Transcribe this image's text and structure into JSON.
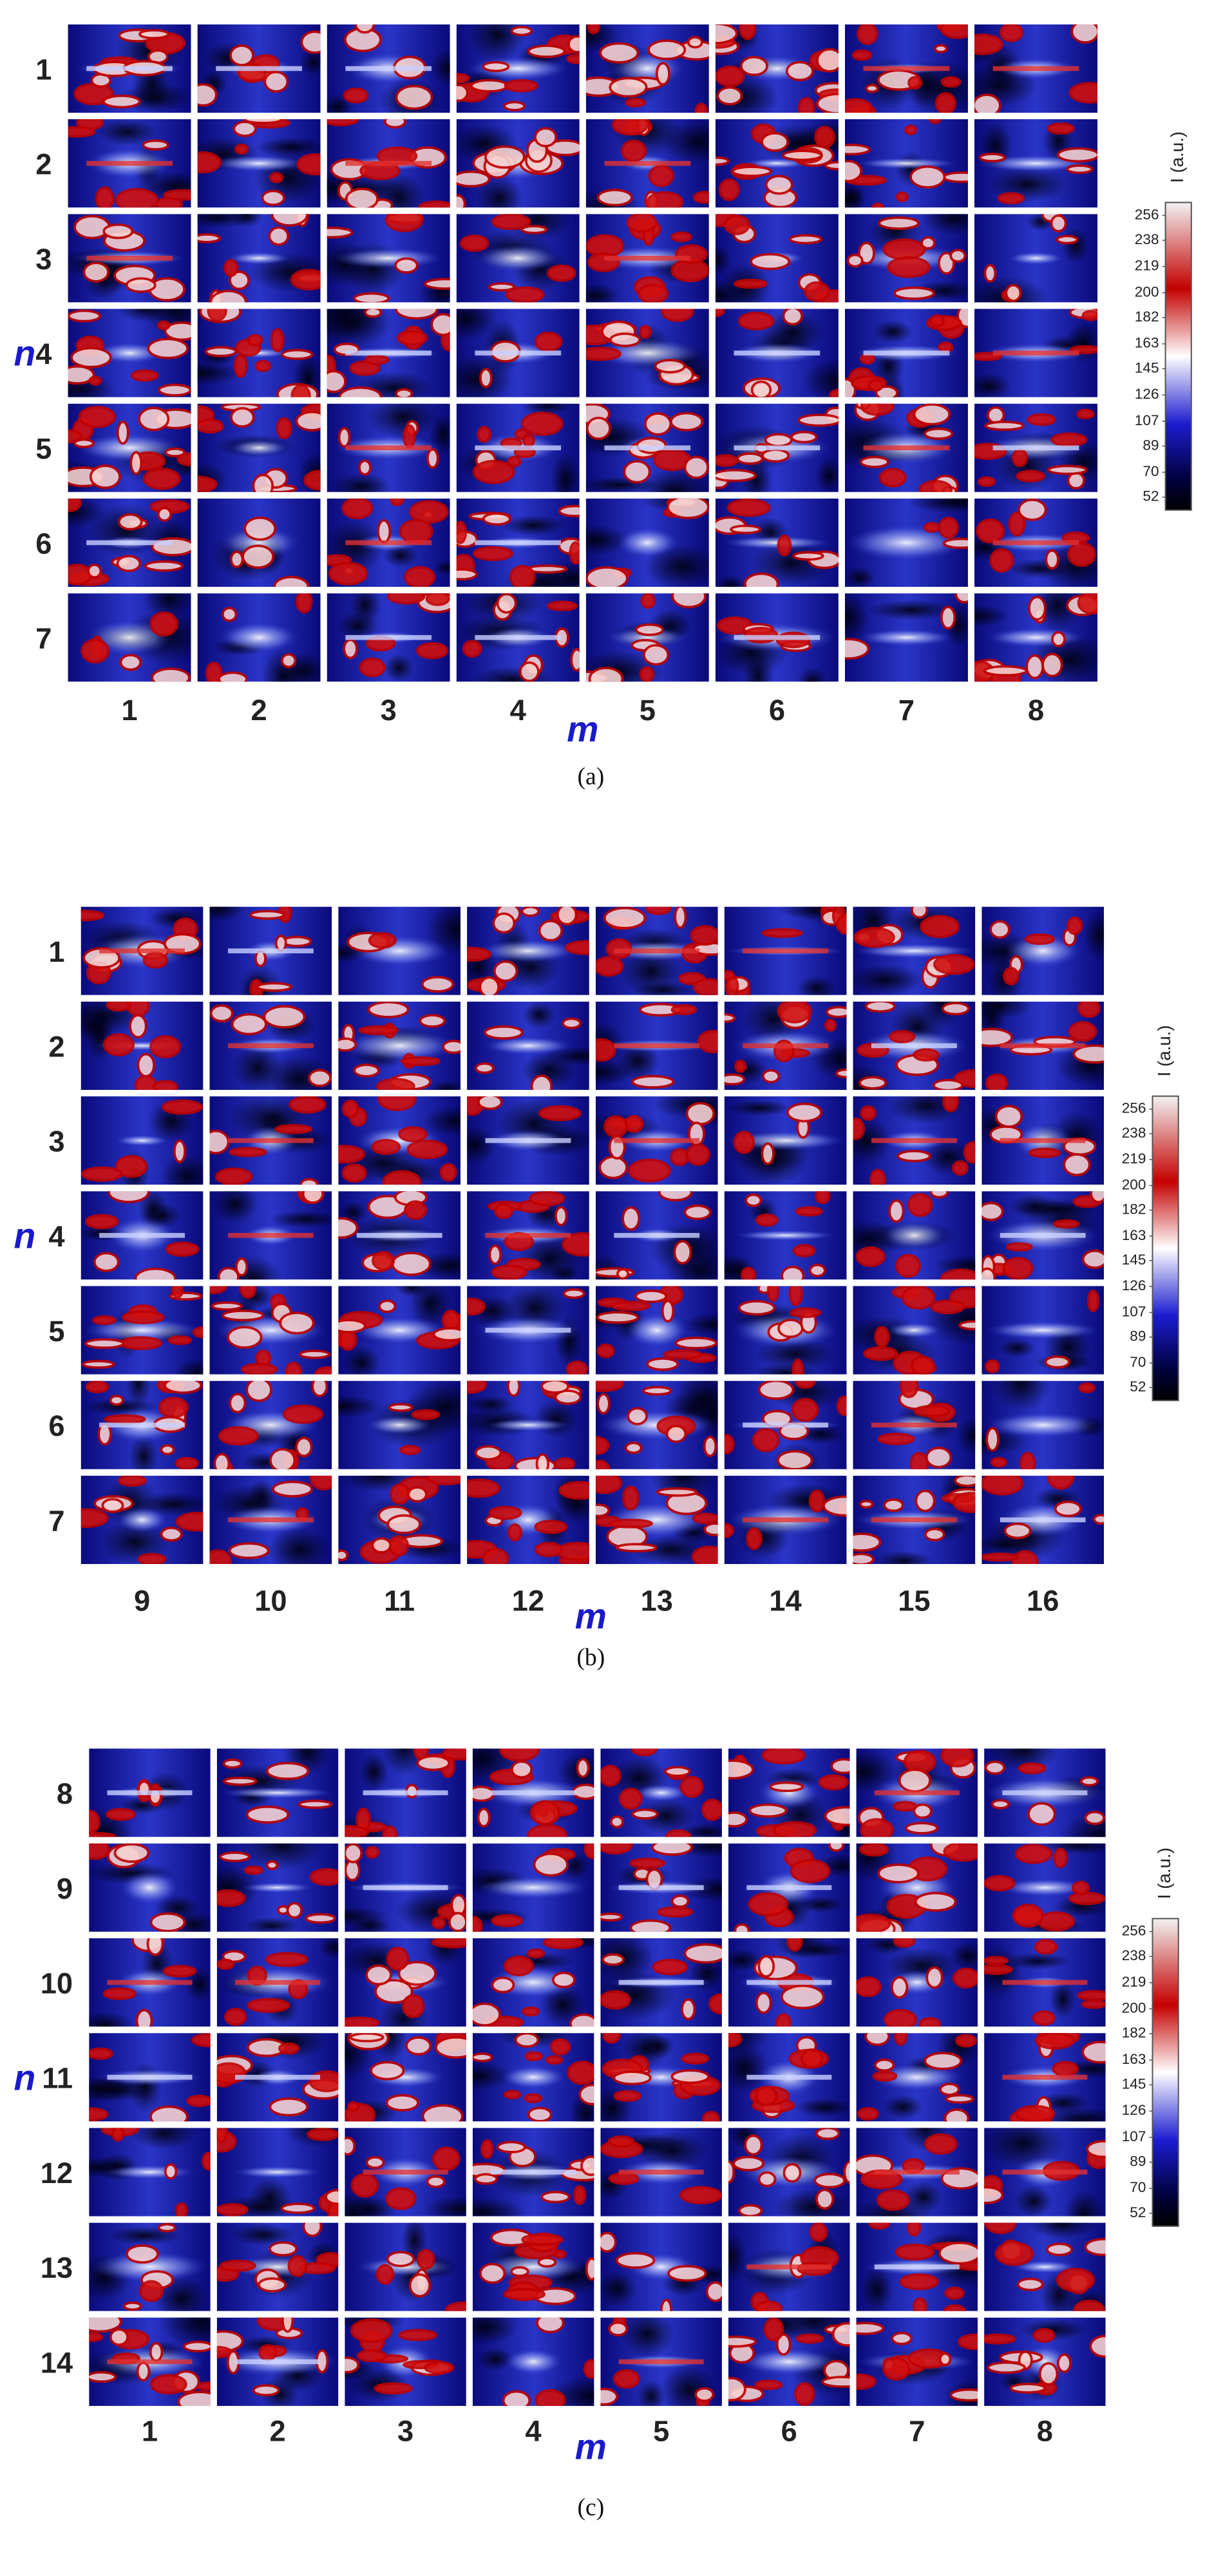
{
  "panels": [
    {
      "rows": [
        "1",
        "2",
        "3",
        "4",
        "5",
        "6",
        "7"
      ],
      "columns": [
        "1",
        "2",
        "3",
        "4",
        "5",
        "6",
        "7",
        "8"
      ],
      "row_axis": "n",
      "column_axis": "m",
      "caption": "(a)",
      "colorbar": {
        "label": "I (a.u.)",
        "ticks": [
          256,
          238,
          219,
          200,
          182,
          163,
          145,
          126,
          107,
          89,
          70,
          52
        ]
      }
    },
    {
      "rows": [
        "1",
        "2",
        "3",
        "4",
        "5",
        "6",
        "7"
      ],
      "columns": [
        "9",
        "10",
        "11",
        "12",
        "13",
        "14",
        "15",
        "16"
      ],
      "row_axis": "n",
      "column_axis": "m",
      "caption": "(b)",
      "colorbar": {
        "label": "I (a.u.)",
        "ticks": [
          256,
          238,
          219,
          200,
          182,
          163,
          145,
          126,
          107,
          89,
          70,
          52
        ]
      }
    },
    {
      "rows": [
        "8",
        "9",
        "10",
        "11",
        "12",
        "13",
        "14"
      ],
      "columns": [
        "1",
        "2",
        "3",
        "4",
        "5",
        "6",
        "7",
        "8"
      ],
      "row_axis": "n",
      "column_axis": "m",
      "caption": "(c)",
      "colorbar": {
        "label": "I (a.u.)",
        "ticks": [
          256,
          238,
          219,
          200,
          182,
          163,
          145,
          126,
          107,
          89,
          70,
          52
        ]
      }
    }
  ]
}
